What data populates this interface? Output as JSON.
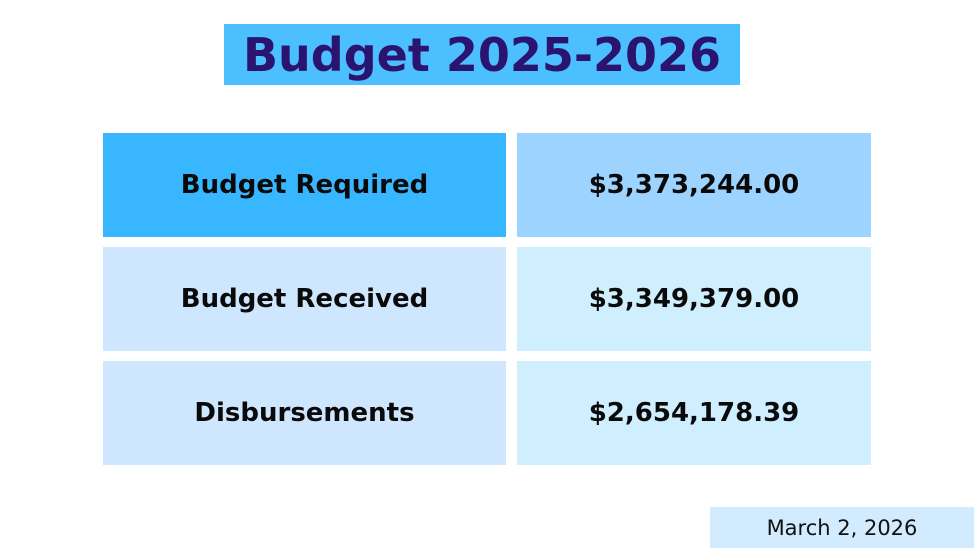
{
  "title": "Budget 2025-2026",
  "rows": [
    {
      "label": "Budget Required",
      "value": "$3,373,244.00"
    },
    {
      "label": "Budget Received",
      "value": "$3,349,379.00"
    },
    {
      "label": "Disbursements",
      "value": "$2,654,178.39"
    }
  ],
  "date": "March 2, 2026",
  "colors": {
    "title_background": "#4cc0ff",
    "title_text": "#2a1470",
    "header_label_background": "#38b6ff",
    "header_value_background": "#9dd3ff",
    "row_label_background": "#cfe6ff",
    "row_value_background": "#cfefff",
    "date_background": "#d3ebff"
  }
}
